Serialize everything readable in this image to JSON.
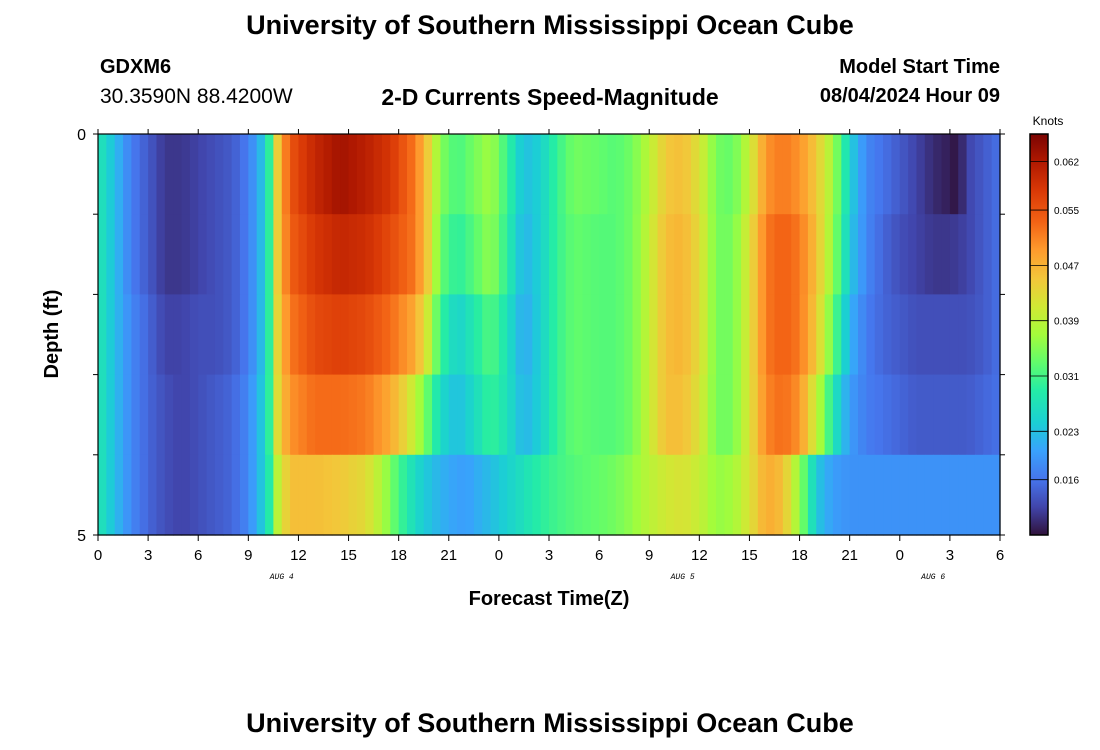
{
  "header": {
    "title": "University of Southern Mississippi Ocean Cube",
    "station": "GDXM6",
    "coords": "30.3590N  88.4200W",
    "subtitle": "2-D Currents Speed-Magnitude",
    "model_start_label": "Model Start Time",
    "model_start_value": "08/04/2024 Hour 09"
  },
  "footer": {
    "title": "University of Southern Mississippi Ocean Cube"
  },
  "chart_data": {
    "type": "heatmap",
    "title": "2-D Currents Speed-Magnitude",
    "xlabel": "Forecast Time(Z)",
    "ylabel": "Depth (ft)",
    "x_tick_labels": [
      "0",
      "3",
      "6",
      "9",
      "12",
      "15",
      "18",
      "21",
      "0",
      "3",
      "6",
      "9",
      "12",
      "15",
      "18",
      "21",
      "0",
      "3",
      "6"
    ],
    "date_labels": [
      "AUG 4",
      "AUG 5",
      "AUG 6"
    ],
    "date_label_hours": [
      11,
      35,
      50
    ],
    "y_tick_labels": [
      "0",
      "5"
    ],
    "x_range_hours": [
      0,
      54
    ],
    "y_range_ft": [
      0,
      5
    ],
    "depth_rows": 5,
    "colorbar": {
      "title": "Knots",
      "ticks": [
        "0.062",
        "0.055",
        "0.047",
        "0.039",
        "0.031",
        "0.023",
        "0.016"
      ],
      "tick_values": [
        0.062,
        0.055,
        0.047,
        0.039,
        0.031,
        0.023,
        0.016
      ],
      "min": 0.008,
      "max": 0.066
    },
    "speed_profiles": [
      [
        [
          0,
          0.028
        ],
        [
          1,
          0.023
        ],
        [
          2,
          0.017
        ],
        [
          3,
          0.014
        ],
        [
          4,
          0.011
        ],
        [
          5,
          0.011
        ],
        [
          6,
          0.012
        ],
        [
          7,
          0.013
        ],
        [
          8,
          0.014
        ],
        [
          9,
          0.017
        ],
        [
          9.7,
          0.022
        ],
        [
          10.3,
          0.03
        ],
        [
          10.8,
          0.046
        ],
        [
          11.5,
          0.055
        ],
        [
          13,
          0.06
        ],
        [
          14.5,
          0.063
        ],
        [
          16,
          0.061
        ],
        [
          17.5,
          0.058
        ],
        [
          19,
          0.052
        ],
        [
          19.8,
          0.044
        ],
        [
          20.5,
          0.035
        ],
        [
          21.5,
          0.031
        ],
        [
          22.5,
          0.034
        ],
        [
          23.5,
          0.037
        ],
        [
          24.5,
          0.03
        ],
        [
          25.5,
          0.023
        ],
        [
          26.5,
          0.025
        ],
        [
          27.5,
          0.03
        ],
        [
          28.5,
          0.034
        ],
        [
          30,
          0.033
        ],
        [
          31,
          0.032
        ],
        [
          32,
          0.034
        ],
        [
          33,
          0.039
        ],
        [
          34,
          0.045
        ],
        [
          35,
          0.046
        ],
        [
          36,
          0.042
        ],
        [
          37,
          0.034
        ],
        [
          38,
          0.033
        ],
        [
          39,
          0.04
        ],
        [
          40,
          0.05
        ],
        [
          41,
          0.052
        ],
        [
          42,
          0.05
        ],
        [
          43,
          0.045
        ],
        [
          44,
          0.037
        ],
        [
          45,
          0.025
        ],
        [
          46,
          0.018
        ],
        [
          47,
          0.016
        ],
        [
          48,
          0.014
        ],
        [
          49,
          0.012
        ],
        [
          50,
          0.01
        ],
        [
          51,
          0.009
        ],
        [
          51.5,
          0.008
        ],
        [
          52,
          0.012
        ],
        [
          53,
          0.014
        ],
        [
          54,
          0.016
        ]
      ],
      [
        [
          0,
          0.028
        ],
        [
          1,
          0.023
        ],
        [
          2,
          0.017
        ],
        [
          3,
          0.014
        ],
        [
          4,
          0.011
        ],
        [
          5,
          0.011
        ],
        [
          6,
          0.012
        ],
        [
          7,
          0.013
        ],
        [
          8,
          0.014
        ],
        [
          9,
          0.017
        ],
        [
          9.7,
          0.022
        ],
        [
          10.3,
          0.03
        ],
        [
          10.8,
          0.046
        ],
        [
          11.5,
          0.054
        ],
        [
          13,
          0.058
        ],
        [
          14.5,
          0.06
        ],
        [
          16,
          0.059
        ],
        [
          17.5,
          0.056
        ],
        [
          19,
          0.052
        ],
        [
          19.8,
          0.044
        ],
        [
          20.5,
          0.033
        ],
        [
          21.5,
          0.029
        ],
        [
          22.5,
          0.032
        ],
        [
          23.5,
          0.036
        ],
        [
          24.5,
          0.029
        ],
        [
          25.5,
          0.022
        ],
        [
          26.5,
          0.025
        ],
        [
          27.5,
          0.03
        ],
        [
          28.5,
          0.033
        ],
        [
          30,
          0.032
        ],
        [
          31,
          0.032
        ],
        [
          32,
          0.034
        ],
        [
          33,
          0.04
        ],
        [
          34,
          0.046
        ],
        [
          35,
          0.047
        ],
        [
          36,
          0.043
        ],
        [
          37,
          0.034
        ],
        [
          38,
          0.034
        ],
        [
          39,
          0.042
        ],
        [
          40,
          0.052
        ],
        [
          41,
          0.054
        ],
        [
          42,
          0.052
        ],
        [
          43,
          0.046
        ],
        [
          44,
          0.036
        ],
        [
          45,
          0.024
        ],
        [
          46,
          0.018
        ],
        [
          47,
          0.015
        ],
        [
          48,
          0.013
        ],
        [
          49,
          0.012
        ],
        [
          50,
          0.011
        ],
        [
          51,
          0.011
        ],
        [
          52,
          0.012
        ],
        [
          53,
          0.014
        ],
        [
          54,
          0.016
        ]
      ],
      [
        [
          0,
          0.028
        ],
        [
          1,
          0.023
        ],
        [
          2,
          0.018
        ],
        [
          3,
          0.015
        ],
        [
          4,
          0.012
        ],
        [
          5,
          0.012
        ],
        [
          6,
          0.013
        ],
        [
          7,
          0.013
        ],
        [
          8,
          0.014
        ],
        [
          9,
          0.017
        ],
        [
          9.7,
          0.022
        ],
        [
          10.3,
          0.03
        ],
        [
          10.8,
          0.045
        ],
        [
          11.5,
          0.052
        ],
        [
          13,
          0.056
        ],
        [
          14.5,
          0.057
        ],
        [
          16,
          0.056
        ],
        [
          17.5,
          0.053
        ],
        [
          19,
          0.048
        ],
        [
          19.8,
          0.04
        ],
        [
          20.5,
          0.03
        ],
        [
          21.5,
          0.025
        ],
        [
          22.5,
          0.028
        ],
        [
          23.5,
          0.032
        ],
        [
          24.5,
          0.027
        ],
        [
          25.5,
          0.021
        ],
        [
          26.5,
          0.025
        ],
        [
          27.5,
          0.03
        ],
        [
          28.5,
          0.033
        ],
        [
          30,
          0.032
        ],
        [
          31,
          0.032
        ],
        [
          32,
          0.034
        ],
        [
          33,
          0.04
        ],
        [
          34,
          0.046
        ],
        [
          35,
          0.047
        ],
        [
          36,
          0.043
        ],
        [
          37,
          0.034
        ],
        [
          38,
          0.034
        ],
        [
          39,
          0.042
        ],
        [
          40,
          0.052
        ],
        [
          41,
          0.054
        ],
        [
          42,
          0.052
        ],
        [
          43,
          0.045
        ],
        [
          44,
          0.033
        ],
        [
          45,
          0.022
        ],
        [
          46,
          0.017
        ],
        [
          47,
          0.015
        ],
        [
          48,
          0.014
        ],
        [
          49,
          0.013
        ],
        [
          50,
          0.013
        ],
        [
          51,
          0.013
        ],
        [
          52,
          0.013
        ],
        [
          53,
          0.014
        ],
        [
          54,
          0.016
        ]
      ],
      [
        [
          0,
          0.028
        ],
        [
          1,
          0.023
        ],
        [
          2,
          0.018
        ],
        [
          3,
          0.015
        ],
        [
          4,
          0.013
        ],
        [
          5,
          0.012
        ],
        [
          6,
          0.013
        ],
        [
          7,
          0.014
        ],
        [
          8,
          0.015
        ],
        [
          9,
          0.018
        ],
        [
          9.7,
          0.023
        ],
        [
          10.3,
          0.03
        ],
        [
          10.8,
          0.044
        ],
        [
          11.5,
          0.05
        ],
        [
          13,
          0.053
        ],
        [
          14.5,
          0.053
        ],
        [
          16,
          0.052
        ],
        [
          17.5,
          0.048
        ],
        [
          18.5,
          0.043
        ],
        [
          19.5,
          0.035
        ],
        [
          20.5,
          0.026
        ],
        [
          21.5,
          0.023
        ],
        [
          22.5,
          0.026
        ],
        [
          23.5,
          0.03
        ],
        [
          24.5,
          0.027
        ],
        [
          25.5,
          0.022
        ],
        [
          26.5,
          0.025
        ],
        [
          27.5,
          0.03
        ],
        [
          28.5,
          0.033
        ],
        [
          30,
          0.032
        ],
        [
          31,
          0.032
        ],
        [
          32,
          0.034
        ],
        [
          33,
          0.04
        ],
        [
          34,
          0.046
        ],
        [
          35,
          0.046
        ],
        [
          36,
          0.042
        ],
        [
          37,
          0.034
        ],
        [
          38,
          0.034
        ],
        [
          39,
          0.042
        ],
        [
          40,
          0.051
        ],
        [
          41,
          0.053
        ],
        [
          42,
          0.05
        ],
        [
          43,
          0.04
        ],
        [
          44,
          0.028
        ],
        [
          45,
          0.02
        ],
        [
          46,
          0.017
        ],
        [
          47,
          0.016
        ],
        [
          48,
          0.015
        ],
        [
          49,
          0.014
        ],
        [
          50,
          0.014
        ],
        [
          51,
          0.014
        ],
        [
          52,
          0.014
        ],
        [
          53,
          0.015
        ],
        [
          54,
          0.016
        ]
      ],
      [
        [
          0,
          0.028
        ],
        [
          1,
          0.023
        ],
        [
          2,
          0.018
        ],
        [
          3,
          0.015
        ],
        [
          4,
          0.013
        ],
        [
          5,
          0.012
        ],
        [
          6,
          0.013
        ],
        [
          7,
          0.014
        ],
        [
          8,
          0.015
        ],
        [
          9,
          0.018
        ],
        [
          9.7,
          0.023
        ],
        [
          10.3,
          0.029
        ],
        [
          10.8,
          0.04
        ],
        [
          11.5,
          0.046
        ],
        [
          13,
          0.046
        ],
        [
          14.5,
          0.045
        ],
        [
          16,
          0.043
        ],
        [
          17,
          0.038
        ],
        [
          18,
          0.031
        ],
        [
          19,
          0.026
        ],
        [
          20,
          0.023
        ],
        [
          21,
          0.021
        ],
        [
          22,
          0.02
        ],
        [
          23,
          0.022
        ],
        [
          24,
          0.024
        ],
        [
          25,
          0.026
        ],
        [
          26,
          0.028
        ],
        [
          27,
          0.03
        ],
        [
          28.5,
          0.032
        ],
        [
          30,
          0.033
        ],
        [
          31,
          0.034
        ],
        [
          32,
          0.036
        ],
        [
          33,
          0.039
        ],
        [
          34,
          0.041
        ],
        [
          35,
          0.042
        ],
        [
          36,
          0.04
        ],
        [
          37,
          0.036
        ],
        [
          38,
          0.037
        ],
        [
          39,
          0.042
        ],
        [
          40,
          0.048
        ],
        [
          41,
          0.046
        ],
        [
          42,
          0.036
        ],
        [
          43,
          0.024
        ],
        [
          44,
          0.02
        ],
        [
          45,
          0.019
        ],
        [
          46,
          0.019
        ],
        [
          47,
          0.019
        ],
        [
          48,
          0.019
        ],
        [
          49,
          0.019
        ],
        [
          50,
          0.019
        ],
        [
          51,
          0.019
        ],
        [
          52,
          0.019
        ],
        [
          53,
          0.019
        ],
        [
          54,
          0.019
        ]
      ]
    ]
  }
}
